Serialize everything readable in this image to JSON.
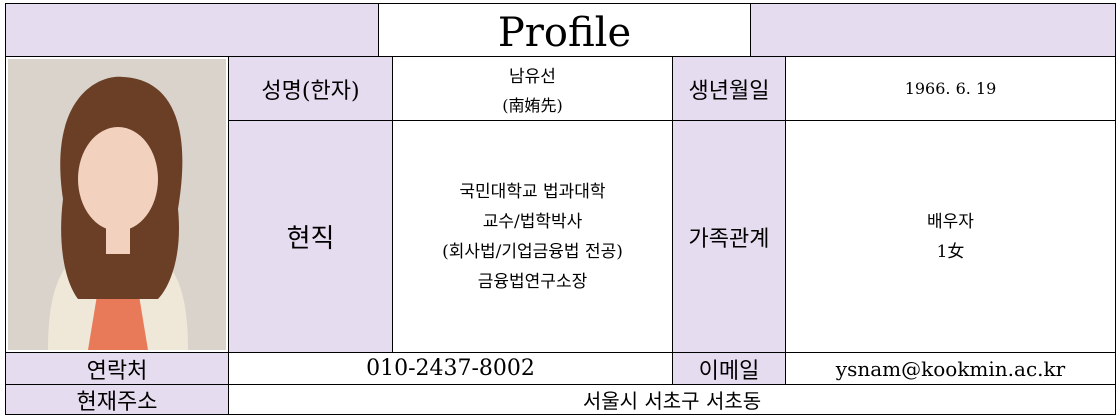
{
  "header": {
    "title": "Profile"
  },
  "table": {
    "name_label": "성명(한자)",
    "name": "남유선",
    "name_hanja": "(南姷先)",
    "birth_label": "생년월일",
    "birth": "1966. 6. 19",
    "job_label": "현직",
    "job": [
      "국민대학교 법과대학",
      "교수/법학박사",
      "(회사법/기업금융법 전공)",
      "금융법연구소장"
    ],
    "family_label": "가족관계",
    "family": [
      "배우자",
      "1女"
    ],
    "contact_label": "연락처",
    "contact": "010-2437-8002",
    "email_label": "이메일",
    "email": "ysnam@kookmin.ac.kr",
    "address_label": "현재주소",
    "address": "서울시 서초구 서초동"
  }
}
